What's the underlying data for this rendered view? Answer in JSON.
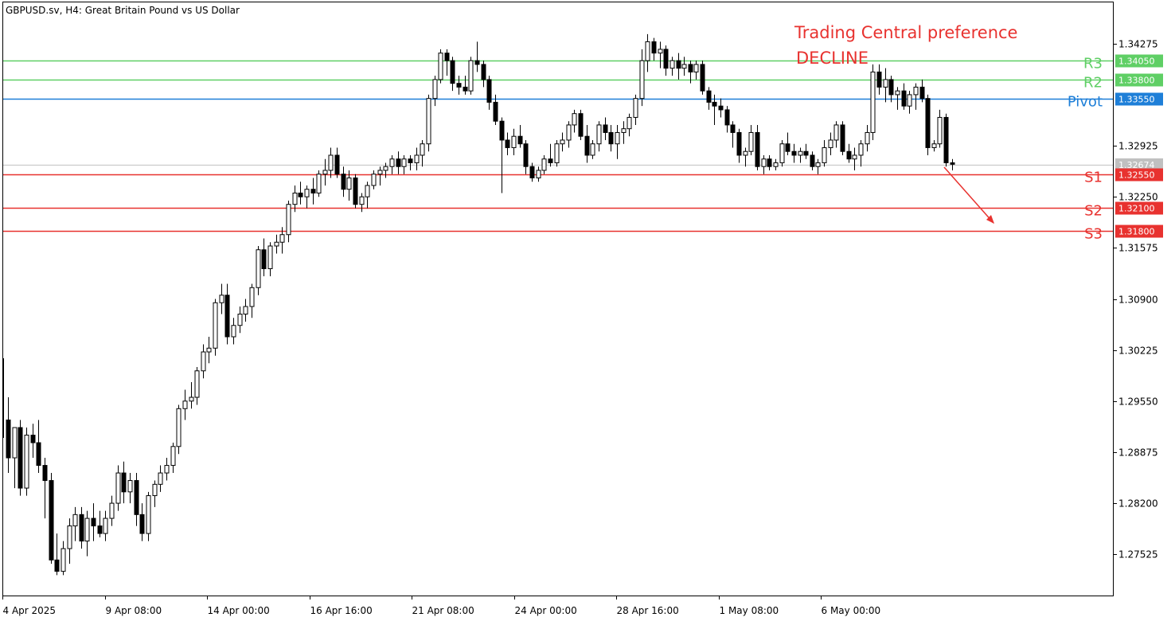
{
  "chart_data": {
    "type": "candlestick",
    "title": "GBPUSD.sv, H4:  Great Britain Pound vs US Dollar",
    "ylim": [
      1.2698,
      1.3482
    ],
    "y_ticks": [
      "1.34275",
      "1.32925",
      "1.32250",
      "1.31575",
      "1.30900",
      "1.30225",
      "1.29550",
      "1.28875",
      "1.28200",
      "1.27525"
    ],
    "x_ticks": [
      "4 Apr 2025",
      "9 Apr 08:00",
      "14 Apr 00:00",
      "16 Apr 16:00",
      "21 Apr 08:00",
      "24 Apr 00:00",
      "28 Apr 16:00",
      "1 May 08:00",
      "6 May 00:00"
    ],
    "annotations": {
      "preference_title": "Trading Central preference",
      "preference_value": "DECLINE"
    },
    "current_price": "1.32674",
    "levels": [
      {
        "name": "R3",
        "price": "1.34050",
        "color": "#5fcf65"
      },
      {
        "name": "R2",
        "price": "1.33800",
        "color": "#5fcf65"
      },
      {
        "name": "Pivot",
        "price": "1.33550",
        "color": "#1e7fd8"
      },
      {
        "name": "S1",
        "price": "1.32550",
        "color": "#e8322f"
      },
      {
        "name": "S2",
        "price": "1.32100",
        "color": "#e8322f"
      },
      {
        "name": "S3",
        "price": "1.31800",
        "color": "#e8322f"
      }
    ],
    "candles_ohlc": [
      [
        1.293,
        1.296,
        1.286,
        1.288
      ],
      [
        1.288,
        1.292,
        1.284,
        1.292
      ],
      [
        1.292,
        1.293,
        1.283,
        1.284
      ],
      [
        1.284,
        1.292,
        1.283,
        1.291
      ],
      [
        1.291,
        1.2925,
        1.288,
        1.29
      ],
      [
        1.29,
        1.293,
        1.286,
        1.287
      ],
      [
        1.287,
        1.288,
        1.28,
        1.285
      ],
      [
        1.285,
        1.286,
        1.274,
        1.2745
      ],
      [
        1.2745,
        1.278,
        1.2725,
        1.273
      ],
      [
        1.273,
        1.277,
        1.2725,
        1.276
      ],
      [
        1.276,
        1.28,
        1.274,
        1.279
      ],
      [
        1.279,
        1.2815,
        1.277,
        1.2805
      ],
      [
        1.2805,
        1.2815,
        1.276,
        1.277
      ],
      [
        1.277,
        1.281,
        1.275,
        1.28
      ],
      [
        1.28,
        1.282,
        1.277,
        1.279
      ],
      [
        1.279,
        1.281,
        1.2775,
        1.278
      ],
      [
        1.278,
        1.281,
        1.277,
        1.28
      ],
      [
        1.28,
        1.283,
        1.279,
        1.282
      ],
      [
        1.282,
        1.287,
        1.281,
        1.286
      ],
      [
        1.286,
        1.2875,
        1.282,
        1.2835
      ],
      [
        1.2835,
        1.286,
        1.282,
        1.285
      ],
      [
        1.285,
        1.286,
        1.279,
        1.2805
      ],
      [
        1.2805,
        1.282,
        1.277,
        1.278
      ],
      [
        1.278,
        1.2835,
        1.277,
        1.283
      ],
      [
        1.283,
        1.285,
        1.2815,
        1.2845
      ],
      [
        1.2845,
        1.287,
        1.2835,
        1.286
      ],
      [
        1.286,
        1.288,
        1.285,
        1.287
      ],
      [
        1.287,
        1.29,
        1.286,
        1.2895
      ],
      [
        1.2895,
        1.295,
        1.2885,
        1.2945
      ],
      [
        1.2945,
        1.297,
        1.293,
        1.2955
      ],
      [
        1.2955,
        1.298,
        1.2945,
        1.296
      ],
      [
        1.296,
        1.3,
        1.295,
        1.2995
      ],
      [
        1.2995,
        1.303,
        1.2985,
        1.302
      ],
      [
        1.302,
        1.304,
        1.3005,
        1.3025
      ],
      [
        1.3025,
        1.309,
        1.3015,
        1.3085
      ],
      [
        1.3085,
        1.311,
        1.307,
        1.3095
      ],
      [
        1.3095,
        1.311,
        1.303,
        1.304
      ],
      [
        1.304,
        1.3065,
        1.303,
        1.3055
      ],
      [
        1.3055,
        1.308,
        1.3045,
        1.307
      ],
      [
        1.307,
        1.309,
        1.306,
        1.308
      ],
      [
        1.308,
        1.311,
        1.3065,
        1.3105
      ],
      [
        1.3105,
        1.316,
        1.3095,
        1.3155
      ],
      [
        1.3155,
        1.317,
        1.312,
        1.313
      ],
      [
        1.313,
        1.3165,
        1.312,
        1.316
      ],
      [
        1.316,
        1.3175,
        1.315,
        1.3165
      ],
      [
        1.3165,
        1.3185,
        1.315,
        1.3175
      ],
      [
        1.3175,
        1.322,
        1.3165,
        1.3215
      ],
      [
        1.3215,
        1.324,
        1.3205,
        1.323
      ],
      [
        1.323,
        1.3245,
        1.3215,
        1.3225
      ],
      [
        1.3225,
        1.324,
        1.321,
        1.3235
      ],
      [
        1.3235,
        1.325,
        1.3215,
        1.323
      ],
      [
        1.323,
        1.326,
        1.3225,
        1.3255
      ],
      [
        1.3255,
        1.3275,
        1.324,
        1.326
      ],
      [
        1.326,
        1.329,
        1.325,
        1.328
      ],
      [
        1.328,
        1.329,
        1.325,
        1.3255
      ],
      [
        1.3255,
        1.3265,
        1.3225,
        1.3235
      ],
      [
        1.3235,
        1.326,
        1.322,
        1.325
      ],
      [
        1.325,
        1.3255,
        1.321,
        1.3215
      ],
      [
        1.3215,
        1.323,
        1.3205,
        1.3225
      ],
      [
        1.3225,
        1.3245,
        1.321,
        1.324
      ],
      [
        1.324,
        1.326,
        1.3235,
        1.3255
      ],
      [
        1.3255,
        1.3265,
        1.324,
        1.326
      ],
      [
        1.326,
        1.327,
        1.325,
        1.3265
      ],
      [
        1.3265,
        1.328,
        1.3255,
        1.3275
      ],
      [
        1.3275,
        1.3285,
        1.3255,
        1.3265
      ],
      [
        1.3265,
        1.328,
        1.3255,
        1.3275
      ],
      [
        1.3275,
        1.328,
        1.326,
        1.327
      ],
      [
        1.327,
        1.329,
        1.326,
        1.328
      ],
      [
        1.328,
        1.33,
        1.3265,
        1.3295
      ],
      [
        1.3295,
        1.336,
        1.3285,
        1.3355
      ],
      [
        1.3355,
        1.3385,
        1.3345,
        1.338
      ],
      [
        1.338,
        1.342,
        1.3375,
        1.3415
      ],
      [
        1.3415,
        1.342,
        1.3385,
        1.3405
      ],
      [
        1.3405,
        1.341,
        1.3365,
        1.3375
      ],
      [
        1.3375,
        1.3385,
        1.336,
        1.337
      ],
      [
        1.337,
        1.3385,
        1.336,
        1.3365
      ],
      [
        1.3365,
        1.341,
        1.336,
        1.3405
      ],
      [
        1.3405,
        1.343,
        1.339,
        1.34
      ],
      [
        1.34,
        1.3405,
        1.337,
        1.338
      ],
      [
        1.338,
        1.3385,
        1.334,
        1.335
      ],
      [
        1.335,
        1.336,
        1.332,
        1.3325
      ],
      [
        1.3325,
        1.333,
        1.323,
        1.33
      ],
      [
        1.33,
        1.331,
        1.328,
        1.329
      ],
      [
        1.329,
        1.3315,
        1.328,
        1.3305
      ],
      [
        1.3305,
        1.332,
        1.329,
        1.3295
      ],
      [
        1.3295,
        1.33,
        1.3255,
        1.3265
      ],
      [
        1.3265,
        1.327,
        1.3245,
        1.325
      ],
      [
        1.325,
        1.3265,
        1.3245,
        1.326
      ],
      [
        1.326,
        1.328,
        1.3255,
        1.3275
      ],
      [
        1.3275,
        1.3295,
        1.3265,
        1.327
      ],
      [
        1.327,
        1.33,
        1.3265,
        1.3295
      ],
      [
        1.3295,
        1.331,
        1.3285,
        1.33
      ],
      [
        1.33,
        1.3325,
        1.329,
        1.332
      ],
      [
        1.332,
        1.334,
        1.331,
        1.3335
      ],
      [
        1.3335,
        1.334,
        1.33,
        1.3305
      ],
      [
        1.3305,
        1.332,
        1.327,
        1.328
      ],
      [
        1.328,
        1.33,
        1.3275,
        1.3295
      ],
      [
        1.3295,
        1.3325,
        1.3285,
        1.332
      ],
      [
        1.332,
        1.333,
        1.33,
        1.331
      ],
      [
        1.331,
        1.332,
        1.3285,
        1.3295
      ],
      [
        1.3295,
        1.332,
        1.3275,
        1.331
      ],
      [
        1.331,
        1.3325,
        1.3295,
        1.3315
      ],
      [
        1.3315,
        1.3335,
        1.3305,
        1.333
      ],
      [
        1.333,
        1.336,
        1.332,
        1.3355
      ],
      [
        1.3355,
        1.342,
        1.3345,
        1.3405
      ],
      [
        1.3405,
        1.344,
        1.339,
        1.343
      ],
      [
        1.343,
        1.3435,
        1.3405,
        1.3415
      ],
      [
        1.3415,
        1.343,
        1.3395,
        1.342
      ],
      [
        1.342,
        1.3425,
        1.3385,
        1.3395
      ],
      [
        1.3395,
        1.341,
        1.3385,
        1.3405
      ],
      [
        1.3405,
        1.3415,
        1.338,
        1.3395
      ],
      [
        1.3395,
        1.341,
        1.3385,
        1.34
      ],
      [
        1.34,
        1.3405,
        1.3375,
        1.339
      ],
      [
        1.339,
        1.3405,
        1.338,
        1.34
      ],
      [
        1.34,
        1.3405,
        1.336,
        1.3365
      ],
      [
        1.3365,
        1.337,
        1.334,
        1.335
      ],
      [
        1.335,
        1.336,
        1.332,
        1.3345
      ],
      [
        1.3345,
        1.3355,
        1.333,
        1.334
      ],
      [
        1.334,
        1.3345,
        1.331,
        1.332
      ],
      [
        1.332,
        1.3325,
        1.329,
        1.331
      ],
      [
        1.331,
        1.3315,
        1.327,
        1.328
      ],
      [
        1.328,
        1.329,
        1.3265,
        1.3285
      ],
      [
        1.3285,
        1.332,
        1.328,
        1.331
      ],
      [
        1.331,
        1.332,
        1.326,
        1.3265
      ],
      [
        1.3265,
        1.328,
        1.3255,
        1.3275
      ],
      [
        1.3275,
        1.328,
        1.326,
        1.3265
      ],
      [
        1.3265,
        1.3275,
        1.326,
        1.327
      ],
      [
        1.327,
        1.33,
        1.3265,
        1.3295
      ],
      [
        1.3295,
        1.331,
        1.328,
        1.3285
      ],
      [
        1.3285,
        1.3295,
        1.327,
        1.328
      ],
      [
        1.328,
        1.329,
        1.327,
        1.3285
      ],
      [
        1.3285,
        1.3295,
        1.3275,
        1.328
      ],
      [
        1.328,
        1.3285,
        1.326,
        1.3265
      ],
      [
        1.3265,
        1.3275,
        1.3255,
        1.327
      ],
      [
        1.327,
        1.33,
        1.3265,
        1.329
      ],
      [
        1.329,
        1.331,
        1.328,
        1.33
      ],
      [
        1.33,
        1.3325,
        1.329,
        1.332
      ],
      [
        1.332,
        1.3325,
        1.328,
        1.3285
      ],
      [
        1.3285,
        1.3295,
        1.327,
        1.3275
      ],
      [
        1.3275,
        1.329,
        1.326,
        1.328
      ],
      [
        1.328,
        1.33,
        1.3265,
        1.3295
      ],
      [
        1.3295,
        1.332,
        1.3285,
        1.331
      ],
      [
        1.331,
        1.34,
        1.33,
        1.339
      ],
      [
        1.339,
        1.34,
        1.336,
        1.337
      ],
      [
        1.337,
        1.3395,
        1.335,
        1.338
      ],
      [
        1.338,
        1.3385,
        1.335,
        1.336
      ],
      [
        1.336,
        1.337,
        1.334,
        1.3365
      ],
      [
        1.3365,
        1.3375,
        1.334,
        1.3345
      ],
      [
        1.3345,
        1.3365,
        1.3335,
        1.336
      ],
      [
        1.336,
        1.3375,
        1.334,
        1.337
      ],
      [
        1.337,
        1.338,
        1.335,
        1.3355
      ],
      [
        1.3355,
        1.336,
        1.328,
        1.329
      ],
      [
        1.329,
        1.33,
        1.3285,
        1.3295
      ],
      [
        1.3295,
        1.334,
        1.329,
        1.333
      ],
      [
        1.333,
        1.3335,
        1.3265,
        1.327
      ],
      [
        1.327,
        1.3275,
        1.326,
        1.3268
      ]
    ]
  }
}
